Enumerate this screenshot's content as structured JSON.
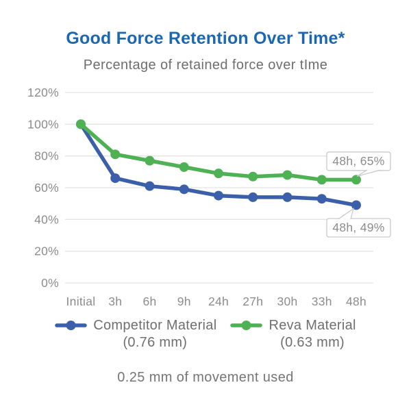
{
  "title": "Good Force Retention Over Time*",
  "subtitle": "Percentage of retained force over tIme",
  "footer": "0.25 mm of movement used",
  "colors": {
    "title": "#1b67b1",
    "competitor": "#3b5fa9",
    "reva": "#4eb153",
    "grid": "#e3e3e3",
    "axis_text": "#8c8c8c",
    "callout_border": "#c9c9c9",
    "callout_text": "#8c8c8c",
    "background": "#ffffff"
  },
  "chart_data": {
    "type": "line",
    "title": "Good Force Retention Over Time*",
    "subtitle": "Percentage of retained force over tIme",
    "categories": [
      "Initial",
      "3h",
      "6h",
      "9h",
      "24h",
      "27h",
      "30h",
      "33h",
      "48h"
    ],
    "series": [
      {
        "name": "Competitor Material",
        "detail": "(0.76 mm)",
        "color_key": "competitor",
        "values": [
          100,
          66,
          61,
          59,
          55,
          54,
          54,
          53,
          49
        ]
      },
      {
        "name": "Reva Material",
        "detail": "(0.63 mm)",
        "color_key": "reva",
        "values": [
          100,
          81,
          77,
          73,
          69,
          67,
          68,
          65,
          65
        ]
      }
    ],
    "y_ticks": [
      "120%",
      "100%",
      "80%",
      "60%",
      "40%",
      "20%",
      "0%"
    ],
    "ylim": [
      0,
      120
    ],
    "xlabel": "",
    "ylabel": "",
    "grid": "horizontal",
    "legend_position": "bottom",
    "annotations": [
      {
        "text": "48h, 65%",
        "series": "Reva Material",
        "point_index": 8,
        "position": "above"
      },
      {
        "text": "48h, 49%",
        "series": "Competitor Material",
        "point_index": 8,
        "position": "below"
      }
    ]
  }
}
